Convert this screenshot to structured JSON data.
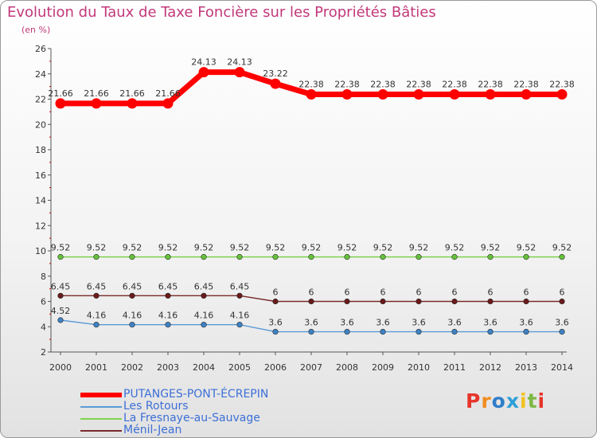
{
  "chart_data": {
    "type": "line",
    "title": "Evolution du Taux de Taxe Foncière sur les Propriétés Bâties",
    "subtitle": "(en %)",
    "x": [
      "2000",
      "2001",
      "2002",
      "2003",
      "2004",
      "2005",
      "2006",
      "2007",
      "2008",
      "2009",
      "2010",
      "2011",
      "2012",
      "2013",
      "2014"
    ],
    "y_ticks": [
      2,
      4,
      6,
      8,
      10,
      12,
      14,
      16,
      18,
      20,
      22,
      24,
      26
    ],
    "ylim": [
      2,
      26
    ],
    "grid": false,
    "legend_position": "bottom-left",
    "series": [
      {
        "name": "PUTANGES-PONT-ÉCREPIN",
        "color": "#ff0000",
        "emphasis": "thick",
        "values": [
          21.66,
          21.66,
          21.66,
          21.66,
          24.13,
          24.13,
          23.22,
          22.38,
          22.38,
          22.38,
          22.38,
          22.38,
          22.38,
          22.38,
          22.38
        ],
        "labels": [
          "21.66",
          "21.66",
          "21.66",
          "21.66",
          "24.13",
          "24.13",
          "23.22",
          "22.38",
          "22.38",
          "22.38",
          "22.38",
          "22.38",
          "22.38",
          "22.38",
          "22.38"
        ]
      },
      {
        "name": "Les Rotours",
        "color": "#5b9bd5",
        "point_color": "#3d82c4",
        "values": [
          4.52,
          4.16,
          4.16,
          4.16,
          4.16,
          4.16,
          3.6,
          3.6,
          3.6,
          3.6,
          3.6,
          3.6,
          3.6,
          3.6,
          3.6
        ],
        "labels": [
          "4.52",
          "4.16",
          "4.16",
          "4.16",
          "4.16",
          "4.16",
          "3.6",
          "3.6",
          "3.6",
          "3.6",
          "3.6",
          "3.6",
          "3.6",
          "3.6",
          "3.6"
        ]
      },
      {
        "name": "La Fresnaye-au-Sauvage",
        "color": "#7fd34e",
        "point_color": "#66c23a",
        "values": [
          9.52,
          9.52,
          9.52,
          9.52,
          9.52,
          9.52,
          9.52,
          9.52,
          9.52,
          9.52,
          9.52,
          9.52,
          9.52,
          9.52,
          9.52
        ],
        "labels": [
          "9.52",
          "9.52",
          "9.52",
          "9.52",
          "9.52",
          "9.52",
          "9.52",
          "9.52",
          "9.52",
          "9.52",
          "9.52",
          "9.52",
          "9.52",
          "9.52",
          "9.52"
        ]
      },
      {
        "name": "Ménil-Jean",
        "color": "#7a2a2a",
        "point_color": "#6a1a1a",
        "values": [
          6.45,
          6.45,
          6.45,
          6.45,
          6.45,
          6.45,
          6,
          6,
          6,
          6,
          6,
          6,
          6,
          6,
          6
        ],
        "labels": [
          "6.45",
          "6.45",
          "6.45",
          "6.45",
          "6.45",
          "6.45",
          "6",
          "6",
          "6",
          "6",
          "6",
          "6",
          "6",
          "6",
          "6"
        ]
      }
    ]
  },
  "legend": {
    "items": [
      {
        "label": "PUTANGES-PONT-ÉCREPIN",
        "color": "#ff0000",
        "text_color": "#3d6fd6"
      },
      {
        "label": "Les Rotours",
        "color": "#5b9bd5",
        "text_color": "#3d6fd6"
      },
      {
        "label": "La Fresnaye-au-Sauvage",
        "color": "#7fd34e",
        "text_color": "#3d6fd6"
      },
      {
        "label": "Ménil-Jean",
        "color": "#7a2a2a",
        "text_color": "#3d6fd6"
      }
    ]
  },
  "logo": {
    "text": "Proxiti",
    "colors": [
      "#e6342b",
      "#f28c1e",
      "#2f7dc8",
      "#2e9fd8",
      "#f2c21e",
      "#7cb843",
      "#e6342b"
    ]
  },
  "colors": {
    "title": "#c2387a",
    "axis": "#555555",
    "tick_accent": "#cc0000",
    "label": "#333333"
  }
}
